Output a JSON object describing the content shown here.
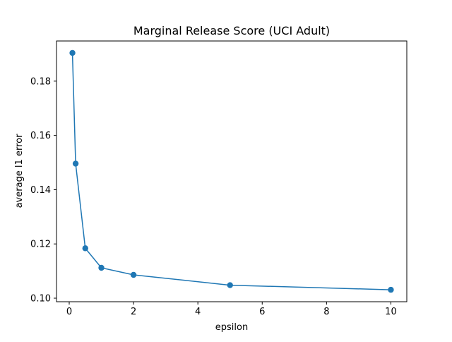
{
  "chart_data": {
    "type": "line",
    "title": "Marginal Release Score (UCI Adult)",
    "xlabel": "epsilon",
    "ylabel": "average l1 error",
    "x": [
      0.1,
      0.2,
      0.5,
      1,
      2,
      5,
      10
    ],
    "series": [
      {
        "values": [
          0.1904,
          0.1496,
          0.1184,
          0.1112,
          0.1086,
          0.1048,
          0.1031
        ]
      }
    ],
    "xlim": [
      -0.395,
      10.495
    ],
    "ylim": [
      0.0987,
      0.1948
    ],
    "xticks": [
      0,
      2,
      4,
      6,
      8,
      10
    ],
    "xtick_labels": [
      "0",
      "2",
      "4",
      "6",
      "8",
      "10"
    ],
    "yticks": [
      0.1,
      0.12,
      0.14,
      0.16,
      0.18
    ],
    "ytick_labels": [
      "0.10",
      "0.12",
      "0.14",
      "0.16",
      "0.18"
    ],
    "grid": false,
    "color": "#1f77b4"
  }
}
